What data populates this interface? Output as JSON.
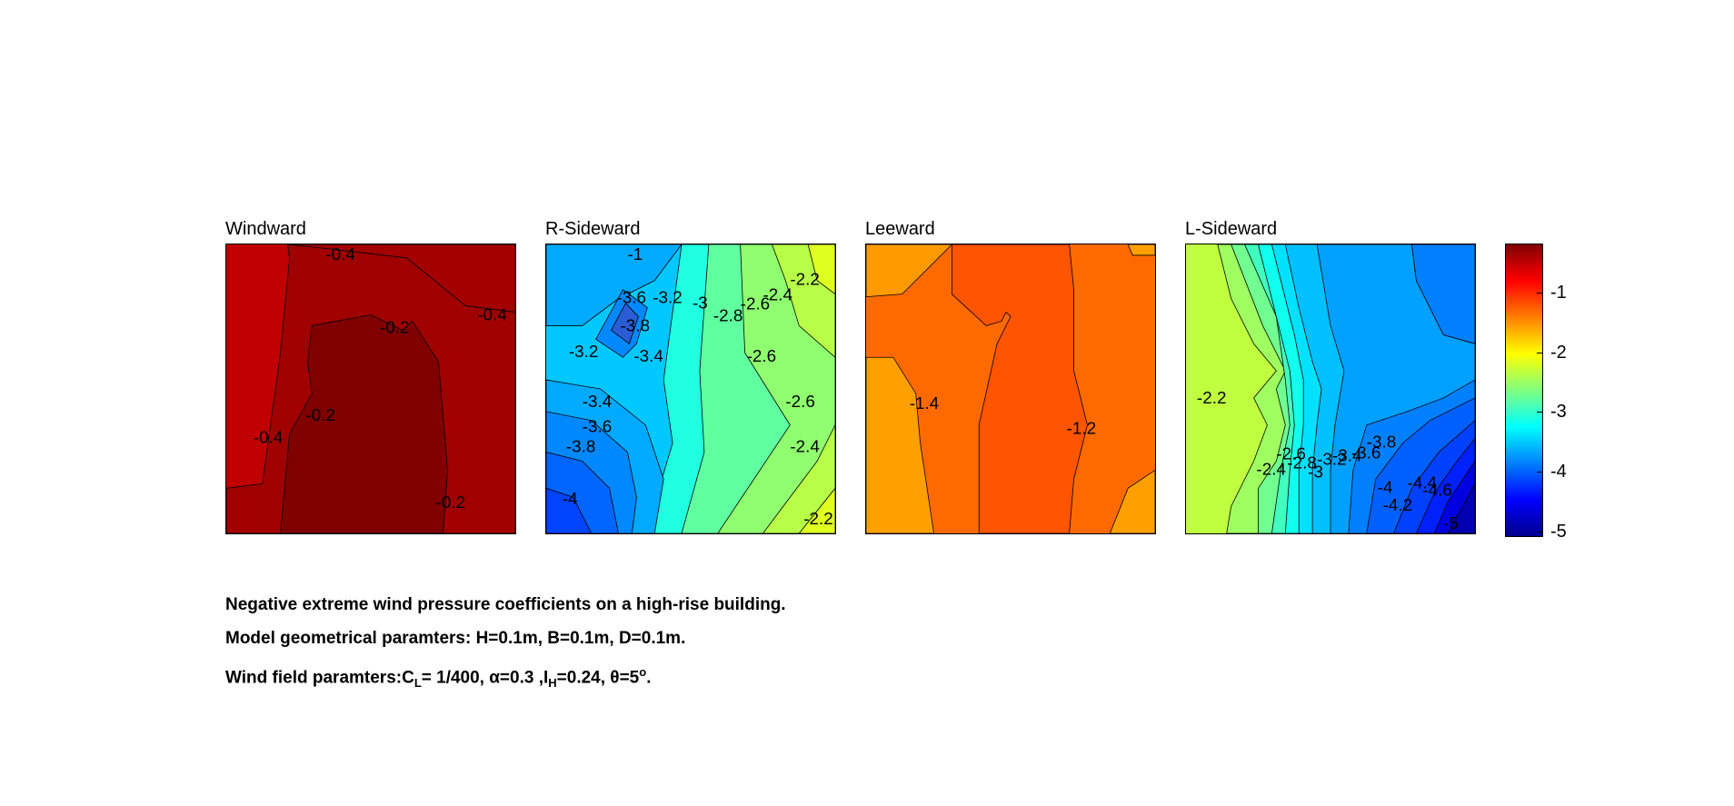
{
  "chart_data": {
    "type": "heatmap",
    "colormap": "jet",
    "panels": [
      {
        "title": "Windward",
        "contour_labels": [
          "-0.4",
          "-0.4",
          "-0.2",
          "-0.4",
          "-0.2",
          "-0.2"
        ],
        "fill_levels": [
          "#c00000",
          "#9e0000",
          "#800000"
        ]
      },
      {
        "title": "R-Sideward",
        "contour_labels": [
          "-1",
          "-3.6",
          "-3.2",
          "-3",
          "-2.8",
          "-2.6",
          "-2.4",
          "-2.2",
          "-3.8",
          "-3.2",
          "-3.4",
          "-2.6",
          "-3.4",
          "-3.6",
          "-3.8",
          "-2.6",
          "-2.4",
          "-4",
          "-2.2"
        ],
        "fill_levels": [
          "#00aaff",
          "#00ccff",
          "#00e8ff",
          "#20ffdf",
          "#60ffa0",
          "#8fff70",
          "#b8ff47",
          "#dfff20",
          "#0088ff",
          "#0066ff",
          "#0044ff",
          "#2a5cd6"
        ]
      },
      {
        "title": "Leeward",
        "contour_labels": [
          "-1.4",
          "-1.2"
        ],
        "fill_levels": [
          "#ff6a00",
          "#ff5400",
          "#ff8000",
          "#ffa000"
        ]
      },
      {
        "title": "L-Sideward",
        "contour_labels": [
          "-2.2",
          "-2.4",
          "-2.6",
          "-2.8",
          "-3",
          "-3.2",
          "-3.4",
          "-3.6",
          "-3.8",
          "-4",
          "-4.2",
          "-4.4",
          "-4.6",
          "-5"
        ],
        "fill_levels": [
          "#bfff40",
          "#9fff60",
          "#70ff90",
          "#40ffbf",
          "#10ffef",
          "#00e0ff",
          "#00c0ff",
          "#00a0ff",
          "#0080ff",
          "#0060ff",
          "#0040ff",
          "#0020ff",
          "#0000e0",
          "#0000b0"
        ]
      }
    ],
    "colorbar": {
      "ticks": [
        "-1",
        "-2",
        "-3",
        "-4",
        "-5"
      ],
      "range": [
        -5.1,
        -0.3
      ]
    }
  },
  "caption": {
    "line1": "Negative extreme wind pressure coefficients on a high-rise building.",
    "line2": "Model geometrical paramters: H=0.1m, B=0.1m, D=0.1m.",
    "line3_prefix": "Wind field paramters:C",
    "line3_sub1": "L",
    "line3_mid1": "= 1/400, α=0.3 ,I",
    "line3_sub2": "H",
    "line3_mid2": "=0.24, θ=5",
    "line3_sup": "o",
    "line3_end": "."
  }
}
